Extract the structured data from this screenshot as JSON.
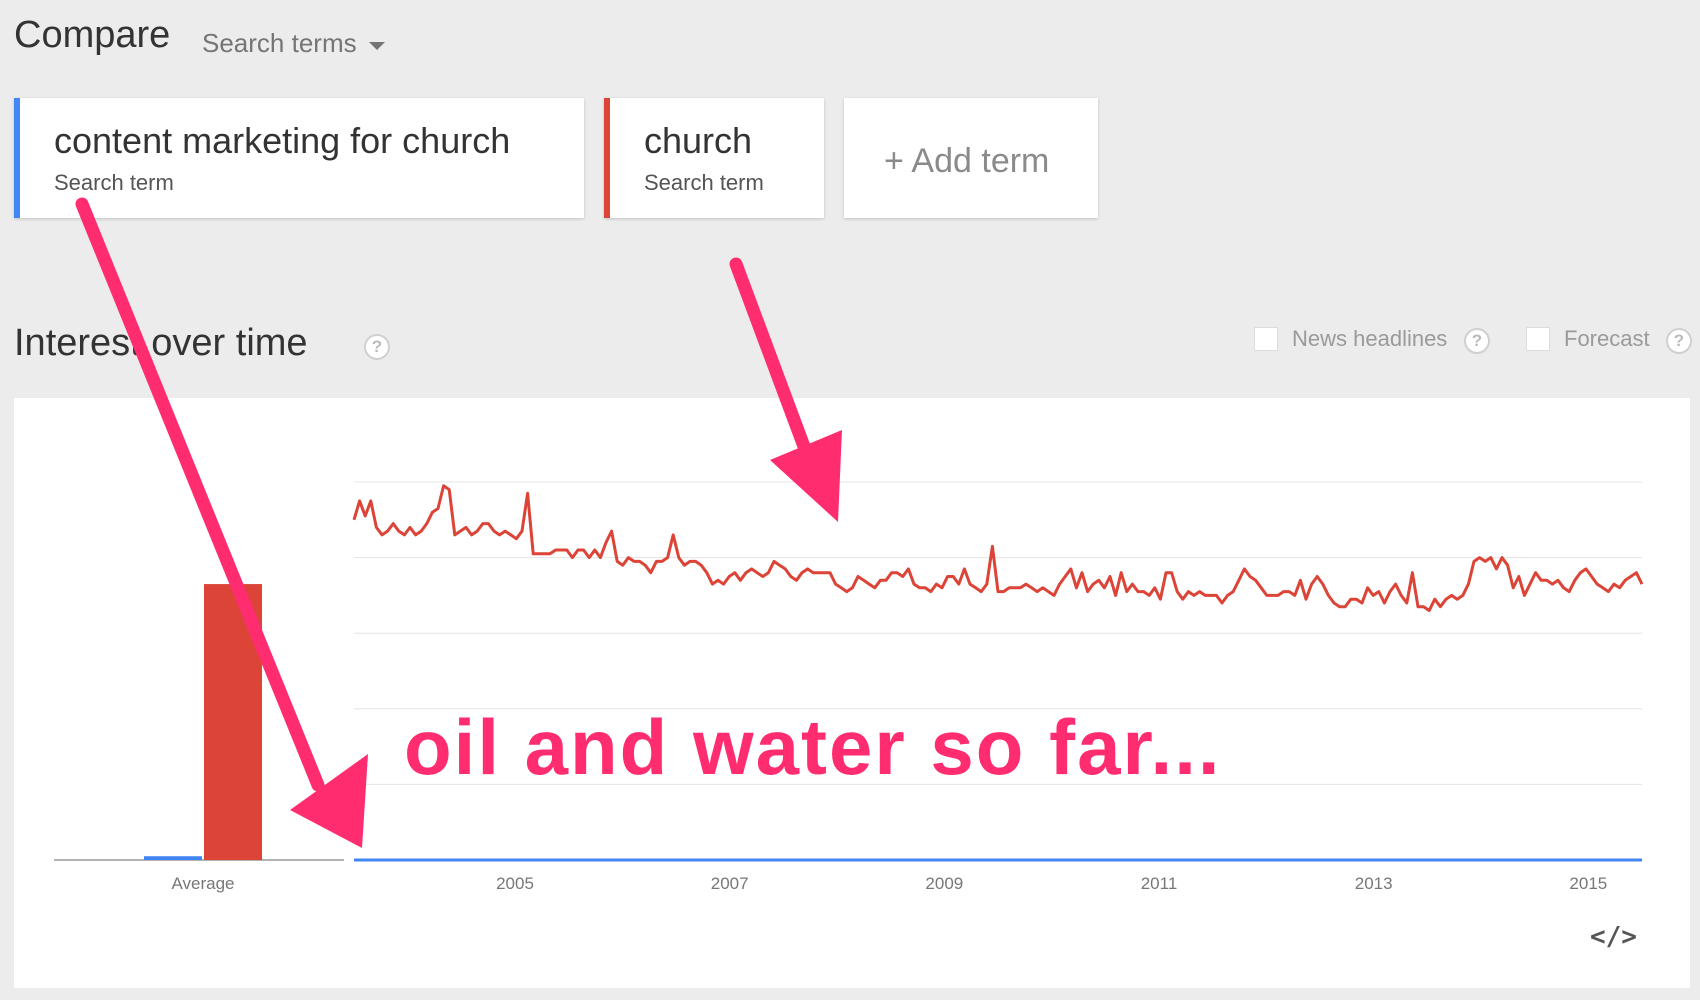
{
  "header": {
    "title": "Compare",
    "dropdown_label": "Search terms"
  },
  "terms": [
    {
      "name": "content marketing for church",
      "sub": "Search term",
      "color": "#4285f4"
    },
    {
      "name": "church",
      "sub": "Search term",
      "color": "#db4437"
    }
  ],
  "add_term_label": "+ Add term",
  "section": {
    "title": "Interest over time",
    "help_glyph": "?"
  },
  "options": {
    "news_label": "News headlines",
    "forecast_label": "Forecast"
  },
  "embed_label": "</>",
  "annotation_text": "oil and water so far...",
  "chart_data": {
    "type": "line",
    "average_bars": [
      {
        "name": "content marketing for church",
        "value": 1,
        "color": "#4285f4"
      },
      {
        "name": "church",
        "value": 73,
        "color": "#db4437"
      }
    ],
    "average_label": "Average",
    "x_tick_labels": [
      "2005",
      "2007",
      "2009",
      "2011",
      "2013",
      "2015"
    ],
    "x_range": [
      "2004-01",
      "2016-01"
    ],
    "ylim": [
      0,
      100
    ],
    "grid": true,
    "series": [
      {
        "name": "church",
        "color": "#db4437",
        "values": [
          90,
          95,
          91,
          95,
          88,
          86,
          87,
          89,
          87,
          86,
          88,
          86,
          87,
          89,
          92,
          93,
          99,
          98,
          86,
          87,
          88,
          86,
          87,
          89,
          89,
          87,
          86,
          87,
          86,
          85,
          87,
          97,
          81,
          81,
          81,
          81,
          82,
          82,
          82,
          80,
          82,
          82,
          80,
          82,
          80,
          84,
          87,
          79,
          78,
          80,
          79,
          79,
          78,
          76,
          79,
          79,
          80,
          86,
          80,
          78,
          79,
          79,
          78,
          76,
          73,
          74,
          73,
          75,
          76,
          74,
          76,
          77,
          76,
          75,
          76,
          79,
          78,
          77,
          75,
          74,
          76,
          77,
          76,
          76,
          76,
          76,
          73,
          72,
          71,
          72,
          75,
          74,
          73,
          72,
          74,
          74,
          76,
          76,
          75,
          77,
          73,
          72,
          72,
          71,
          73,
          72,
          75,
          75,
          73,
          77,
          73,
          72,
          71,
          73,
          83,
          71,
          71,
          72,
          72,
          72,
          73,
          72,
          71,
          72,
          71,
          70,
          73,
          75,
          77,
          72,
          76,
          71,
          73,
          74,
          72,
          75,
          70,
          76,
          71,
          73,
          71,
          71,
          70,
          72,
          69,
          76,
          76,
          71,
          69,
          71,
          70,
          71,
          70,
          70,
          70,
          68,
          70,
          71,
          74,
          77,
          75,
          74,
          72,
          70,
          70,
          70,
          71,
          71,
          70,
          74,
          69,
          73,
          75,
          73,
          70,
          68,
          67,
          67,
          69,
          69,
          68,
          72,
          70,
          71,
          68,
          71,
          73,
          70,
          68,
          76,
          67,
          67,
          66,
          69,
          67,
          69,
          70,
          69,
          70,
          73,
          79,
          80,
          79,
          80,
          77,
          80,
          78,
          72,
          75,
          70,
          73,
          76,
          74,
          74,
          73,
          74,
          72,
          71,
          74,
          76,
          77,
          75,
          73,
          72,
          71,
          73,
          72,
          74,
          75,
          76,
          73
        ]
      },
      {
        "name": "content marketing for church",
        "color": "#4285f4",
        "values": [
          0
        ]
      }
    ]
  }
}
